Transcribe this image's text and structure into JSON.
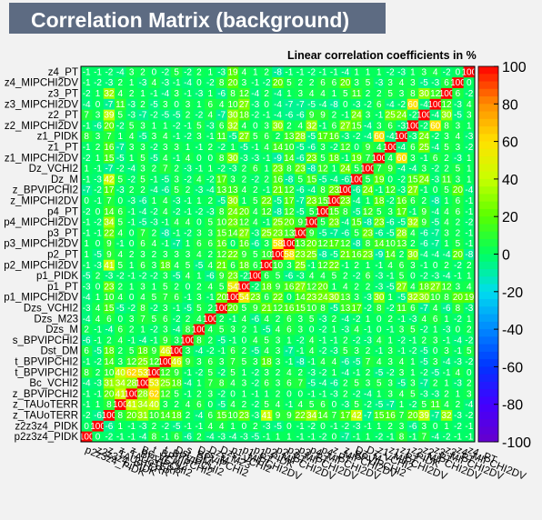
{
  "title": "Correlation Matrix (background)",
  "subtitle": "Linear correlation coefficients in %",
  "chart_data": {
    "type": "heatmap",
    "zlim": [
      -100,
      100
    ],
    "colorbar_ticks": [
      100,
      80,
      60,
      40,
      20,
      0,
      -20,
      -40,
      -60,
      -80,
      -100
    ],
    "variables": [
      "p2z3z4_PIDK",
      "z2z3z4_PIDK",
      "z_TAUoTERR",
      "z_TAUoTERR",
      "z_BPVIPCHI2",
      "Bc_VCHI2",
      "t_BPVIPCHI2",
      "t_BPVIPCHI2",
      "Dst_DM",
      "s_BPVIPCHI2",
      "Dzs_M",
      "Dzs_M23",
      "Dzs_VCHI2",
      "p1_MIPCHI2DV",
      "p1_PT",
      "p1_PIDK",
      "p2_MIPCHI2DV",
      "p2_PT",
      "p3_MIPCHI2DV",
      "p3_PT",
      "p4_MIPCHI2DV",
      "p4_PT",
      "z_MIPCHI2DV",
      "z_BPVIPCHI2",
      "Dz_M",
      "Dz_VCHI2",
      "z1_MIPCHI2DV",
      "z1_PT",
      "z1_PIDK",
      "z2_MIPCHI2DV",
      "z2_PT",
      "z3_MIPCHI2DV",
      "z3_PT",
      "z4_MIPCHI2DV",
      "z4_PT"
    ],
    "values": [
      [
        100,
        0,
        -2,
        -1,
        -1,
        -4,
        8,
        -1,
        6,
        -6,
        2,
        -4,
        -3,
        -4,
        -3,
        -5,
        -1,
        1,
        1,
        -1,
        -1,
        -2,
        0,
        -7,
        -1,
        1,
        -2,
        -1,
        8,
        -1,
        7,
        -4,
        -2,
        -1,
        -1
      ],
      [
        0,
        100,
        -6,
        1,
        -1,
        -3,
        2,
        -2,
        -5,
        -1,
        -1,
        4,
        4,
        1,
        0,
        2,
        -3,
        -5,
        0,
        -1,
        -2,
        0,
        -1,
        -2,
        -3,
        -1,
        1,
        2,
        3,
        -6,
        3,
        0,
        1,
        -2,
        -1
      ],
      [
        -2,
        -6,
        100,
        8,
        20,
        31,
        10,
        14,
        18,
        2,
        -4,
        6,
        15,
        10,
        23,
        -3,
        41,
        9,
        9,
        22,
        34,
        14,
        7,
        17,
        42,
        -7,
        15,
        16,
        7,
        20,
        39,
        -7,
        32,
        -3,
        -2
      ],
      [
        -1,
        1,
        8,
        100,
        41,
        34,
        40,
        3,
        2,
        4,
        6,
        0,
        -5,
        4,
        2,
        -2,
        5,
        4,
        -1,
        4,
        5,
        6,
        0,
        -3,
        5,
        -2,
        -5,
        -7,
        1,
        -2,
        5,
        11,
        4,
        2,
        -4
      ],
      [
        -1,
        -1,
        20,
        41,
        100,
        28,
        62,
        12,
        5,
        -1,
        2,
        3,
        -2,
        0,
        1,
        -1,
        1,
        2,
        0,
        0,
        -1,
        -1,
        -3,
        2,
        -2,
        -4,
        1,
        3,
        4,
        5,
        -3,
        -3,
        2,
        1,
        3
      ],
      [
        -4,
        -3,
        31,
        34,
        28,
        100,
        53,
        25,
        18,
        -4,
        1,
        7,
        8,
        4,
        3,
        -2,
        6,
        3,
        6,
        7,
        -5,
        -4,
        -6,
        2,
        5,
        3,
        5,
        3,
        -5,
        3,
        -7,
        2,
        1,
        -3,
        2
      ],
      [
        8,
        2,
        10,
        40,
        62,
        53,
        100,
        12,
        9,
        -1,
        -2,
        5,
        -2,
        5,
        1,
        -2,
        3,
        2,
        4,
        2,
        -3,
        -2,
        1,
        -4,
        -1,
        2,
        -5,
        -2,
        3,
        1,
        -2,
        -5,
        -1,
        4,
        0
      ],
      [
        -1,
        -2,
        14,
        3,
        12,
        25,
        12,
        100,
        46,
        9,
        3,
        6,
        3,
        7,
        5,
        3,
        18,
        3,
        -1,
        -8,
        -1,
        4,
        4,
        -6,
        -5,
        7,
        4,
        3,
        4,
        1,
        -5,
        3,
        -4,
        -3,
        -2
      ],
      [
        6,
        -5,
        18,
        2,
        5,
        18,
        9,
        46,
        100,
        3,
        -4,
        -2,
        -1,
        6,
        2,
        -5,
        4,
        3,
        -7,
        -1,
        4,
        -2,
        -3,
        5,
        3,
        2,
        -1,
        3,
        -1,
        -2,
        -5,
        0,
        3,
        -1,
        5
      ],
      [
        -6,
        -1,
        2,
        4,
        -1,
        -4,
        -1,
        9,
        3,
        100,
        8,
        2,
        -5,
        -1,
        0,
        4,
        5,
        3,
        1,
        -2,
        4,
        -1,
        -1,
        2,
        -2,
        -3,
        4,
        1,
        -2,
        -1,
        2,
        3,
        -1,
        -4,
        -2
      ],
      [
        2,
        -1,
        -4,
        6,
        2,
        1,
        -2,
        3,
        -4,
        8,
        100,
        4,
        5,
        3,
        2,
        1,
        -5,
        4,
        6,
        3,
        0,
        -2,
        1,
        -3,
        4,
        -1,
        0,
        -1,
        3,
        5,
        -2,
        1,
        -3,
        0,
        2
      ],
      [
        -4,
        4,
        6,
        0,
        3,
        7,
        5,
        6,
        -2,
        2,
        4,
        100,
        2,
        -1,
        4,
        -6,
        4,
        2,
        6,
        3,
        5,
        -3,
        2,
        -4,
        -2,
        1,
        0,
        2,
        -1,
        -3,
        4,
        6,
        1,
        -2,
        1
      ],
      [
        -3,
        4,
        15,
        -5,
        -2,
        8,
        -2,
        3,
        -1,
        -5,
        5,
        2,
        100,
        20,
        5,
        9,
        21,
        12,
        16,
        15,
        10,
        8,
        -5,
        13,
        17,
        -2,
        8,
        -2,
        11,
        6,
        -7,
        4,
        -6,
        8,
        -3
      ],
      [
        -4,
        1,
        10,
        4,
        0,
        4,
        5,
        7,
        6,
        -1,
        3,
        -1,
        20,
        100,
        54,
        23,
        6,
        22,
        0,
        14,
        23,
        24,
        30,
        13,
        3,
        -3,
        30,
        1,
        -5,
        32,
        30,
        10,
        8,
        20,
        19
      ],
      [
        -3,
        0,
        23,
        2,
        1,
        3,
        1,
        5,
        2,
        0,
        2,
        4,
        5,
        54,
        100,
        -2,
        18,
        9,
        16,
        27,
        12,
        20,
        1,
        4,
        2,
        2,
        -3,
        -5,
        27,
        4,
        18,
        27,
        12,
        3,
        4
      ],
      [
        -5,
        2,
        -3,
        -2,
        -1,
        -2,
        -2,
        3,
        -5,
        4,
        1,
        -6,
        9,
        23,
        -2,
        100,
        6,
        5,
        -6,
        -3,
        4,
        4,
        5,
        2,
        -2,
        6,
        -3,
        -1,
        5,
        0,
        -2,
        -3,
        -4,
        -1,
        1
      ],
      [
        -1,
        -3,
        41,
        5,
        1,
        6,
        3,
        18,
        4,
        5,
        -5,
        4,
        21,
        6,
        18,
        6,
        100,
        10,
        3,
        25,
        -1,
        12,
        22,
        -1,
        2,
        1,
        -1,
        4,
        6,
        3,
        -1,
        0,
        2,
        -2,
        2
      ],
      [
        1,
        -5,
        9,
        4,
        2,
        3,
        2,
        3,
        3,
        3,
        4,
        2,
        12,
        22,
        9,
        5,
        10,
        100,
        58,
        23,
        25,
        -8,
        -5,
        21,
        16,
        23,
        -9,
        14,
        2,
        30,
        -4,
        -4,
        -4,
        20,
        -8
      ],
      [
        1,
        0,
        9,
        -1,
        0,
        6,
        4,
        -1,
        -7,
        1,
        6,
        6,
        16,
        0,
        16,
        -6,
        3,
        58,
        100,
        13,
        20,
        12,
        17,
        12,
        -8,
        8,
        14,
        10,
        13,
        2,
        -6,
        -7,
        1,
        5,
        -1
      ],
      [
        -1,
        -1,
        22,
        4,
        0,
        7,
        2,
        -8,
        -1,
        -2,
        3,
        3,
        15,
        14,
        27,
        -3,
        25,
        23,
        13,
        100,
        9,
        -5,
        -7,
        -6,
        5,
        23,
        -6,
        -5,
        28,
        4,
        -6,
        -7,
        3,
        2,
        -1
      ],
      [
        -1,
        -2,
        34,
        5,
        -1,
        -5,
        -3,
        -1,
        4,
        4,
        0,
        5,
        10,
        23,
        12,
        4,
        -1,
        25,
        20,
        9,
        100,
        5,
        23,
        -4,
        15,
        -8,
        23,
        -6,
        -5,
        32,
        9,
        -5,
        4,
        2,
        -2
      ],
      [
        -2,
        0,
        14,
        6,
        -1,
        -4,
        -2,
        4,
        -2,
        -1,
        -2,
        -3,
        8,
        24,
        20,
        4,
        12,
        -8,
        12,
        -5,
        5,
        100,
        15,
        8,
        -5,
        12,
        5,
        3,
        17,
        -1,
        9,
        -4,
        4,
        6,
        -1
      ],
      [
        0,
        -1,
        7,
        0,
        -3,
        -6,
        1,
        4,
        -3,
        -1,
        1,
        2,
        -5,
        30,
        1,
        5,
        22,
        -5,
        17,
        -7,
        23,
        15,
        100,
        23,
        -4,
        1,
        18,
        -2,
        16,
        6,
        2,
        -8,
        1,
        6,
        -1
      ],
      [
        -7,
        -2,
        17,
        -3,
        2,
        2,
        -4,
        -6,
        5,
        2,
        -3,
        -4,
        13,
        13,
        4,
        2,
        -1,
        21,
        12,
        -6,
        -4,
        8,
        23,
        100,
        -6,
        24,
        -1,
        12,
        -3,
        27,
        -1,
        0,
        5,
        20,
        -4
      ],
      [
        -1,
        -3,
        42,
        5,
        -2,
        5,
        -1,
        -5,
        3,
        -2,
        4,
        -2,
        17,
        3,
        2,
        -2,
        2,
        16,
        -8,
        5,
        15,
        -5,
        -4,
        -6,
        100,
        5,
        19,
        0,
        -2,
        15,
        24,
        -3,
        11,
        3,
        1
      ],
      [
        1,
        -1,
        -7,
        -2,
        -4,
        3,
        2,
        7,
        2,
        -3,
        -1,
        1,
        -2,
        -3,
        2,
        6,
        1,
        23,
        8,
        23,
        -8,
        12,
        1,
        24,
        5,
        100,
        7,
        9,
        -4,
        -4,
        3,
        -2,
        2,
        5,
        1
      ],
      [
        -2,
        1,
        15,
        -5,
        1,
        5,
        -5,
        4,
        -1,
        4,
        0,
        0,
        8,
        30,
        -3,
        -3,
        -1,
        -9,
        14,
        -6,
        23,
        5,
        18,
        -1,
        19,
        7,
        100,
        4,
        60,
        3,
        -1,
        6,
        2,
        -3,
        1
      ],
      [
        -1,
        2,
        16,
        -7,
        3,
        3,
        -2,
        3,
        3,
        1,
        -1,
        2,
        -2,
        1,
        -5,
        -1,
        4,
        14,
        10,
        -5,
        -6,
        3,
        -2,
        12,
        0,
        9,
        4,
        100,
        -4,
        6,
        25,
        -4,
        5,
        3,
        -2
      ],
      [
        8,
        3,
        7,
        1,
        4,
        -5,
        3,
        4,
        -1,
        -2,
        3,
        -1,
        11,
        -5,
        27,
        5,
        6,
        2,
        13,
        28,
        -5,
        17,
        16,
        -3,
        -2,
        -4,
        60,
        -4,
        100,
        -3,
        24,
        -2,
        3,
        4,
        -3
      ],
      [
        -1,
        -6,
        20,
        -2,
        5,
        3,
        1,
        1,
        -2,
        -1,
        5,
        -3,
        6,
        32,
        4,
        0,
        3,
        30,
        2,
        4,
        32,
        -1,
        6,
        27,
        15,
        -4,
        3,
        6,
        -3,
        100,
        -2,
        60,
        8,
        3,
        1
      ],
      [
        7,
        3,
        39,
        5,
        -3,
        -7,
        -2,
        -5,
        -5,
        2,
        -2,
        4,
        -7,
        30,
        18,
        -2,
        -1,
        -4,
        -6,
        -6,
        9,
        9,
        2,
        -1,
        24,
        3,
        -1,
        25,
        24,
        -2,
        100,
        -4,
        30,
        -5,
        3
      ],
      [
        -4,
        0,
        -7,
        11,
        -3,
        2,
        -5,
        3,
        0,
        3,
        1,
        6,
        4,
        10,
        27,
        -3,
        0,
        -4,
        -7,
        -7,
        -5,
        -4,
        -8,
        0,
        -3,
        -2,
        6,
        -4,
        -2,
        60,
        -4,
        100,
        12,
        -3,
        4
      ],
      [
        -2,
        1,
        32,
        4,
        2,
        1,
        -1,
        -4,
        3,
        -1,
        -3,
        1,
        -6,
        8,
        12,
        -4,
        2,
        -4,
        1,
        3,
        4,
        4,
        1,
        5,
        11,
        2,
        2,
        5,
        3,
        8,
        30,
        12,
        100,
        6,
        -2
      ],
      [
        -1,
        -2,
        -3,
        2,
        1,
        -3,
        4,
        -3,
        -1,
        -4,
        0,
        -2,
        8,
        20,
        3,
        -1,
        -2,
        20,
        5,
        2,
        2,
        6,
        6,
        20,
        3,
        5,
        -3,
        3,
        4,
        3,
        -5,
        -3,
        6,
        100,
        0
      ],
      [
        -1,
        -1,
        -2,
        -4,
        3,
        2,
        0,
        -2,
        5,
        -2,
        2,
        1,
        -3,
        19,
        4,
        1,
        2,
        -8,
        -1,
        -1,
        -2,
        -1,
        -1,
        -4,
        1,
        1,
        1,
        -2,
        -3,
        1,
        3,
        4,
        -2,
        0,
        100
      ]
    ]
  }
}
